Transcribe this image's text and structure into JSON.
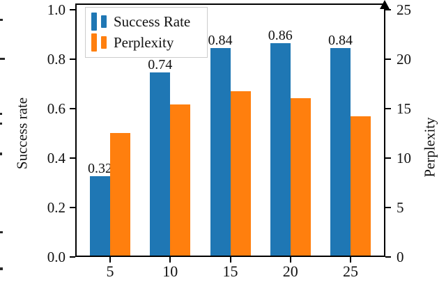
{
  "chart_data": {
    "type": "bar",
    "title": "",
    "categories": [
      5,
      10,
      15,
      20,
      25
    ],
    "x_tick_labels": [
      "5",
      "10",
      "15",
      "20",
      "25"
    ],
    "series": [
      {
        "name": "Success Rate",
        "axis": "left",
        "color": "#1f77b4",
        "values": [
          0.32,
          0.74,
          0.84,
          0.86,
          0.84
        ],
        "value_labels": [
          "0.32",
          "0.74",
          "0.84",
          "0.86",
          "0.84"
        ]
      },
      {
        "name": "Perplexity",
        "axis": "right",
        "color": "#ff7f0e",
        "values": [
          12.4,
          15.3,
          16.6,
          15.9,
          14.1
        ]
      }
    ],
    "ylabel_left": "Success rate",
    "ylabel_right": "Perplexity",
    "ylim_left": [
      0.0,
      1.0
    ],
    "ylim_right": [
      0,
      25
    ],
    "xlim": [
      2.1,
      27.9
    ],
    "left_tick_labels": [
      "1.0",
      "0.8",
      "0.6",
      "0.4",
      "0.2",
      "0.0"
    ],
    "right_tick_labels": [
      "25",
      "20",
      "15",
      "10",
      "5",
      "0"
    ],
    "grid": false,
    "legend_position": "upper left",
    "right_spine_arrow": "up"
  }
}
